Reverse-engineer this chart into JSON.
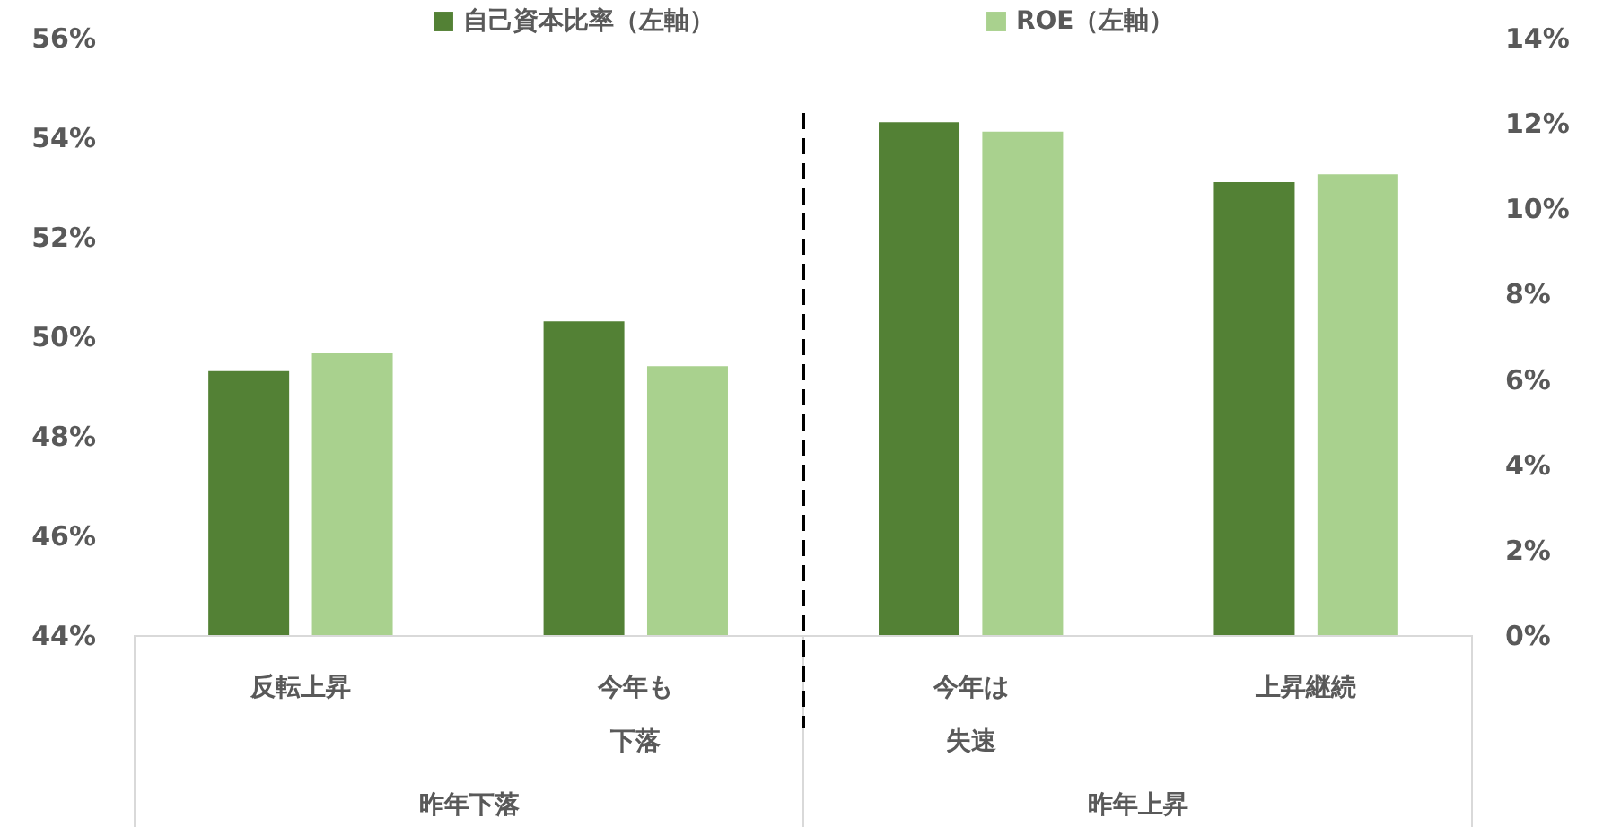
{
  "chart_data": {
    "type": "bar",
    "categories": [
      "反転上昇",
      "今年も下落",
      "今年は失速",
      "上昇継続"
    ],
    "series": [
      {
        "name": "自己資本比率（左軸）",
        "color": "#538135",
        "values": [
          49.3,
          50.3,
          54.3,
          53.1
        ]
      },
      {
        "name": "ROE（左軸）",
        "color": "#a9d18e",
        "axis": "y2",
        "values": [
          6.6,
          6.3,
          11.8,
          10.8
        ]
      }
    ],
    "ylim": [
      44,
      56
    ],
    "yticks": [
      {
        "value": 44,
        "label": "44%"
      },
      {
        "value": 46,
        "label": "46%"
      },
      {
        "value": 48,
        "label": "48%"
      },
      {
        "value": 50,
        "label": "50%"
      },
      {
        "value": 52,
        "label": "52%"
      },
      {
        "value": 54,
        "label": "54%"
      },
      {
        "value": 56,
        "label": "56%"
      }
    ],
    "y2lim": [
      0,
      14
    ],
    "y2ticks": [
      {
        "value": 0,
        "label": "0%"
      },
      {
        "value": 2,
        "label": "2%"
      },
      {
        "value": 4,
        "label": "4%"
      },
      {
        "value": 6,
        "label": "6%"
      },
      {
        "value": 8,
        "label": "8%"
      },
      {
        "value": 10,
        "label": "10%"
      },
      {
        "value": 12,
        "label": "12%"
      },
      {
        "value": 14,
        "label": "14%"
      }
    ],
    "annotations": [
      "昨年下落",
      "昨年上昇"
    ],
    "legend": "top",
    "grid": false
  }
}
